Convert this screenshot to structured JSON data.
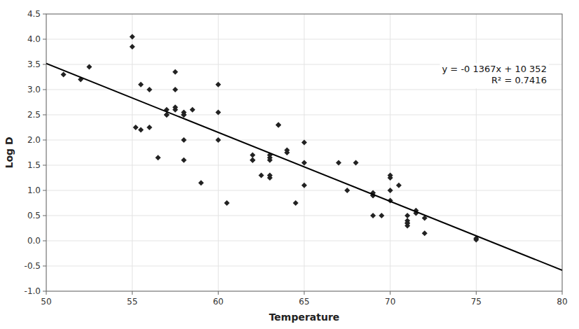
{
  "chart_data": {
    "type": "scatter",
    "xlabel": "Temperature",
    "ylabel": "Log D",
    "annotations": [
      "y = -0 1367x + 10 352",
      "R² = 0.7416"
    ],
    "series": [
      {
        "type": "scatter",
        "marker": "diamond",
        "color": "#222222",
        "x": [
          51,
          52,
          52.5,
          55,
          55,
          55.2,
          55.5,
          55.5,
          56,
          56,
          56.5,
          57,
          57,
          57,
          57.5,
          57.5,
          57.5,
          57.5,
          58,
          58,
          58,
          58,
          58,
          58.5,
          59,
          60,
          60,
          60,
          60.5,
          62,
          62,
          62,
          62.5,
          63,
          63,
          63,
          63,
          63,
          63.5,
          63.5,
          64,
          64,
          64.5,
          65,
          65,
          65,
          67,
          67.5,
          68,
          69,
          69,
          69,
          69,
          69.5,
          70,
          70,
          70,
          70,
          70.5,
          71,
          71,
          71,
          71,
          71,
          71.5,
          71.5,
          72,
          72,
          75,
          75
        ],
        "values": [
          3.3,
          3.2,
          3.45,
          3.85,
          4.05,
          2.25,
          2.2,
          3.1,
          3.0,
          2.25,
          1.65,
          2.5,
          2.5,
          2.6,
          2.65,
          2.6,
          3.0,
          3.35,
          2.5,
          2.5,
          2.55,
          2.0,
          1.6,
          2.6,
          1.15,
          3.1,
          2.0,
          2.55,
          0.75,
          1.6,
          1.6,
          1.7,
          1.3,
          1.25,
          1.6,
          1.65,
          1.3,
          1.7,
          2.3,
          2.3,
          1.75,
          1.8,
          0.75,
          1.95,
          1.55,
          1.1,
          1.55,
          1.0,
          1.55,
          0.9,
          0.9,
          0.95,
          0.5,
          0.5,
          1.3,
          1.25,
          0.8,
          1.0,
          1.1,
          0.3,
          0.35,
          0.35,
          0.4,
          0.5,
          0.55,
          0.6,
          0.15,
          0.45,
          0.02,
          0.05
        ]
      },
      {
        "type": "line",
        "line_style": "solid",
        "color": "#000000",
        "x": [
          50,
          80
        ],
        "values": [
          3.517,
          -0.584
        ]
      }
    ],
    "xlim": [
      50,
      80
    ],
    "ylim": [
      -1.0,
      4.5
    ],
    "xticks": [
      50,
      55,
      60,
      65,
      70,
      75,
      80
    ],
    "yticks": [
      {
        "value": -1.0,
        "label": "-1.0"
      },
      -0.5,
      {
        "value": 0,
        "label": "0.0"
      },
      0.5,
      {
        "value": 1.0,
        "label": "1.0"
      },
      1.5,
      {
        "value": 2.0,
        "label": "2.0"
      },
      2.5,
      {
        "value": 3.0,
        "label": "3.0"
      },
      3.5,
      {
        "value": 4.0,
        "label": "4.0"
      },
      4.5
    ],
    "grid": true
  }
}
